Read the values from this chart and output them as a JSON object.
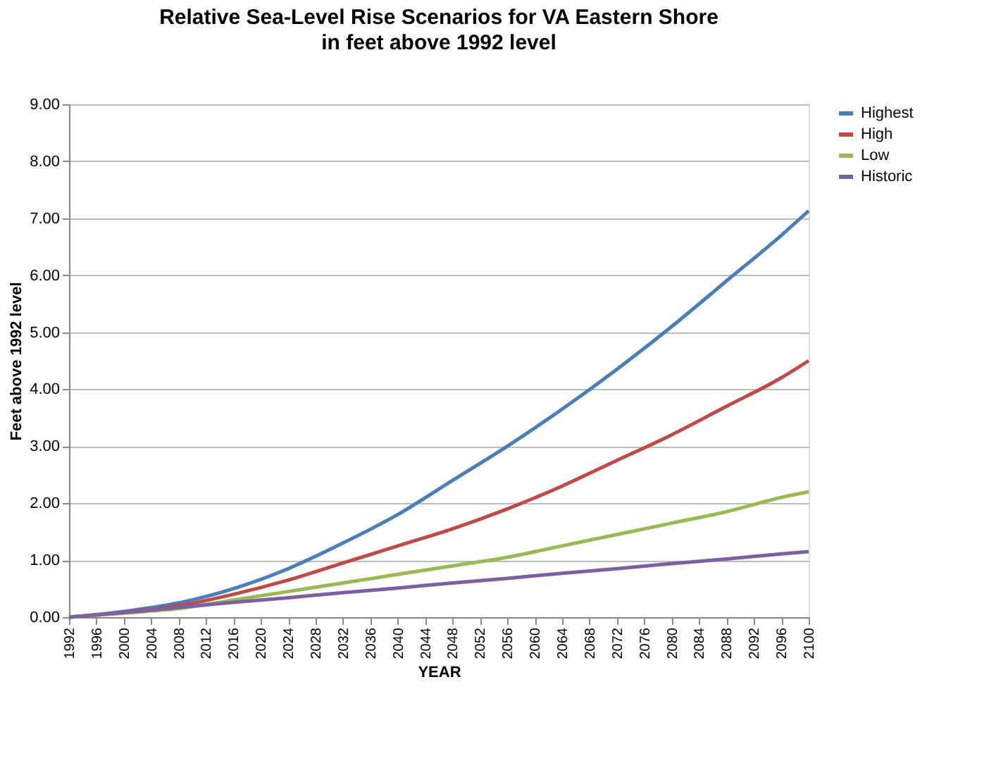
{
  "chart_data": {
    "type": "line",
    "title": "Relative Sea-Level Rise Scenarios for VA Eastern Shore",
    "subtitle": "in feet above 1992 level",
    "xlabel": "YEAR",
    "ylabel": "Feet above 1992 level",
    "x": [
      1992,
      2000,
      2008,
      2016,
      2024,
      2032,
      2040,
      2048,
      2056,
      2064,
      2072,
      2080,
      2088,
      2096,
      2100
    ],
    "series": [
      {
        "name": "Highest",
        "color": "#4a7ebb",
        "values": [
          0,
          0.1,
          0.25,
          0.5,
          0.85,
          1.3,
          1.8,
          2.4,
          3.0,
          3.65,
          4.35,
          5.1,
          5.9,
          6.7,
          7.13
        ]
      },
      {
        "name": "High",
        "color": "#be4b48",
        "values": [
          0,
          0.08,
          0.2,
          0.4,
          0.65,
          0.95,
          1.25,
          1.55,
          1.9,
          2.3,
          2.75,
          3.2,
          3.7,
          4.2,
          4.5
        ]
      },
      {
        "name": "Low",
        "color": "#98b954",
        "values": [
          0,
          0.07,
          0.15,
          0.3,
          0.45,
          0.6,
          0.75,
          0.9,
          1.05,
          1.25,
          1.45,
          1.65,
          1.85,
          2.1,
          2.2
        ]
      },
      {
        "name": "Historic",
        "color": "#7d60a0",
        "values": [
          0,
          0.08,
          0.17,
          0.26,
          0.34,
          0.43,
          0.51,
          0.6,
          0.68,
          0.77,
          0.85,
          0.94,
          1.02,
          1.11,
          1.15
        ]
      }
    ],
    "xlim": [
      1992,
      2100
    ],
    "xticks": [
      1992,
      1996,
      2000,
      2004,
      2008,
      2012,
      2016,
      2020,
      2024,
      2028,
      2032,
      2036,
      2040,
      2044,
      2048,
      2052,
      2056,
      2060,
      2064,
      2068,
      2072,
      2076,
      2080,
      2084,
      2088,
      2092,
      2096,
      2100
    ],
    "ylim": [
      0,
      9
    ],
    "yticks": [
      {
        "value": 0,
        "label": "0.00"
      },
      {
        "value": 1,
        "label": "1.00"
      },
      {
        "value": 2,
        "label": "2.00"
      },
      {
        "value": 3,
        "label": "3.00"
      },
      {
        "value": 4,
        "label": "4.00"
      },
      {
        "value": 5,
        "label": "5.00"
      },
      {
        "value": 6,
        "label": "6.00"
      },
      {
        "value": 7,
        "label": "7.00"
      },
      {
        "value": 8,
        "label": "8.00"
      },
      {
        "value": 9,
        "label": "9.00"
      }
    ],
    "grid": "y",
    "legend": "right",
    "marker": "none",
    "line_style": "solid"
  }
}
